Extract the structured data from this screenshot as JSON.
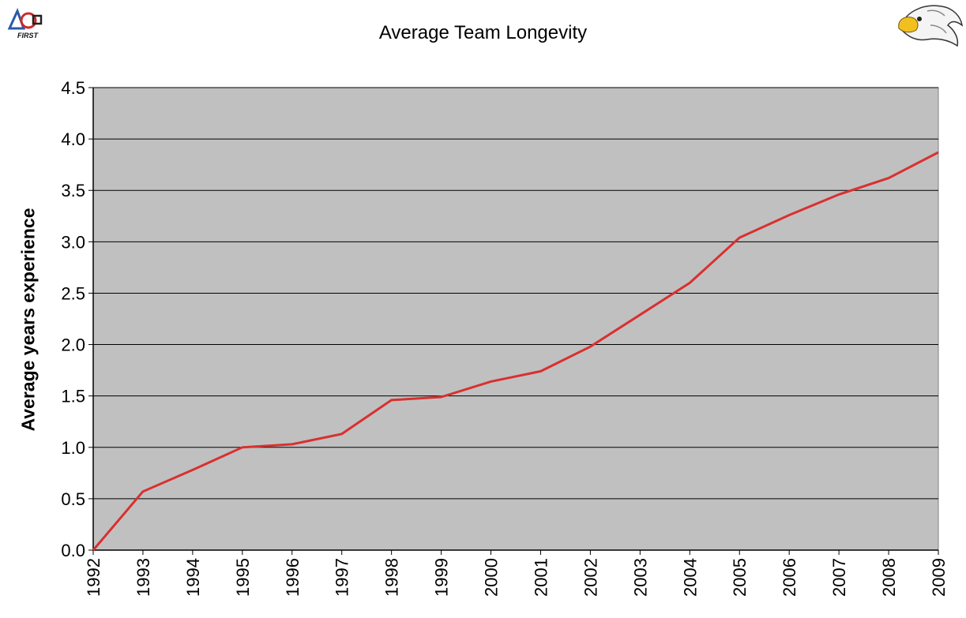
{
  "chart_data": {
    "type": "line",
    "title": "Average Team Longevity",
    "xlabel": "",
    "ylabel": "Average years experience",
    "ylim": [
      0,
      4.5
    ],
    "yticks": [
      "0.0",
      "0.5",
      "1.0",
      "1.5",
      "2.0",
      "2.5",
      "3.0",
      "3.5",
      "4.0",
      "4.5"
    ],
    "grid": true,
    "legend": "none",
    "x": [
      "1992",
      "1993",
      "1994",
      "1995",
      "1996",
      "1997",
      "1998",
      "1999",
      "2000",
      "2001",
      "2002",
      "2003",
      "2004",
      "2005",
      "2006",
      "2007",
      "2008",
      "2009"
    ],
    "series": [
      {
        "color": "#d93030",
        "values": [
          0.0,
          0.57,
          0.78,
          1.0,
          1.03,
          1.13,
          1.46,
          1.49,
          1.64,
          1.74,
          1.98,
          2.29,
          2.6,
          3.04,
          3.26,
          3.46,
          3.62,
          3.87
        ]
      }
    ]
  },
  "colors": {
    "plot_background": "#c0c0c0",
    "gridline": "#000000",
    "line": "#d93030"
  },
  "logos": {
    "left": "FIRST",
    "right": "eagle-mascot"
  }
}
